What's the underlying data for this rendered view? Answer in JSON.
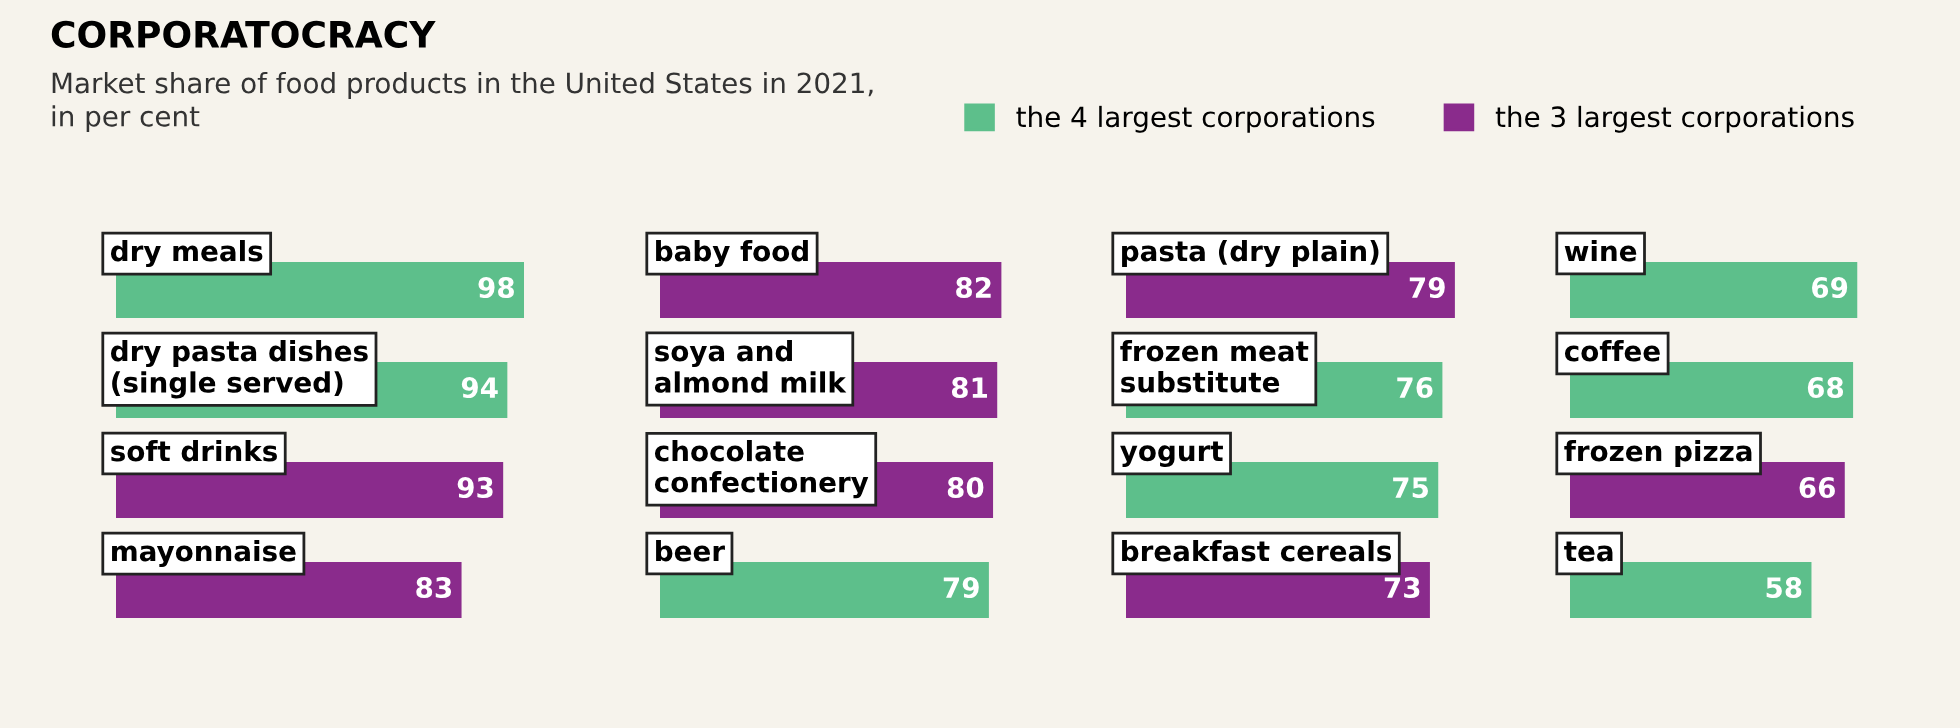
{
  "chart_data": [
    {
      "type": "bar",
      "orientation": "horizontal",
      "title": "CORPORATOCRACY",
      "subtitle": "Market share of food products in the United States in 2021,\nin per cent",
      "legend": "top right",
      "data_labels": true,
      "tick_labels": false,
      "categories": [
        "dry meals",
        "dry pasta dishes\n(single served)",
        "soft drinks",
        "mayonnaise"
      ],
      "series": [
        {
          "name": "the 4 largest corporations",
          "color": "#5dbf8b",
          "values": [
            98,
            94,
            null,
            null
          ]
        },
        {
          "name": "the 3 largest corporations",
          "color": "#8a2b8c",
          "values": [
            null,
            null,
            93,
            83
          ]
        }
      ]
    },
    {
      "type": "bar",
      "orientation": "horizontal",
      "data_labels": true,
      "tick_labels": false,
      "categories": [
        "baby food",
        "soya and\nalmond milk",
        "chocolate\nconfectionery",
        "beer"
      ],
      "series": [
        {
          "color": "#5dbf8b",
          "values": [
            null,
            null,
            null,
            79
          ]
        },
        {
          "color": "#8a2b8c",
          "values": [
            82,
            81,
            80,
            null
          ]
        }
      ]
    },
    {
      "type": "bar",
      "orientation": "horizontal",
      "data_labels": true,
      "tick_labels": false,
      "categories": [
        "pasta (dry plain)",
        "frozen meat\nsubstitute",
        "yogurt",
        "breakfast cereals"
      ],
      "series": [
        {
          "color": "#5dbf8b",
          "values": [
            null,
            76,
            75,
            null
          ]
        },
        {
          "color": "#8a2b8c",
          "values": [
            79,
            null,
            null,
            73
          ]
        }
      ]
    },
    {
      "type": "bar",
      "orientation": "horizontal",
      "data_labels": true,
      "tick_labels": false,
      "categories": [
        "wine",
        "coffee",
        "frozen pizza",
        "tea"
      ],
      "series": [
        {
          "color": "#5dbf8b",
          "values": [
            69,
            68,
            null,
            58
          ]
        },
        {
          "color": "#8a2b8c",
          "values": [
            null,
            null,
            66,
            null
          ]
        }
      ]
    }
  ]
}
